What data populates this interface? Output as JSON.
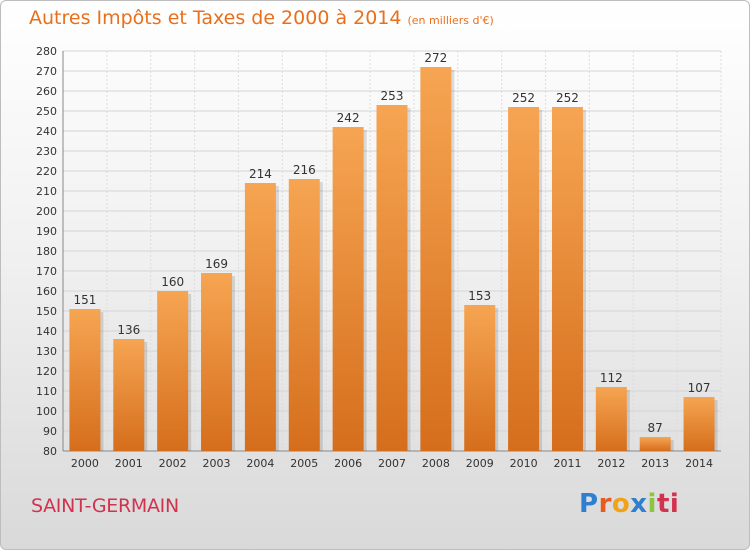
{
  "header": {
    "title": "Autres Impôts et Taxes de 2000 à 2014",
    "unit": "(en milliers d'€)"
  },
  "footer": {
    "place": "SAINT-GERMAIN",
    "logo_letters": [
      "P",
      "r",
      "o",
      "x",
      "i",
      "ti"
    ]
  },
  "colors": {
    "bar": "#f39a45",
    "bar_dark": "#d9741f",
    "title": "#e8701c",
    "place": "#d1324e"
  },
  "chart_data": {
    "type": "bar",
    "title": "Autres Impôts et Taxes de 2000 à 2014",
    "subtitle": "(en milliers d'€)",
    "categories": [
      "2000",
      "2001",
      "2002",
      "2003",
      "2004",
      "2005",
      "2006",
      "2007",
      "2008",
      "2009",
      "2010",
      "2011",
      "2012",
      "2013",
      "2014"
    ],
    "values": [
      151,
      136,
      160,
      169,
      214,
      216,
      242,
      253,
      272,
      153,
      252,
      252,
      112,
      87,
      107
    ],
    "ylim": [
      80,
      280
    ],
    "ytick_step": 10,
    "grid": true,
    "data_labels": true
  }
}
